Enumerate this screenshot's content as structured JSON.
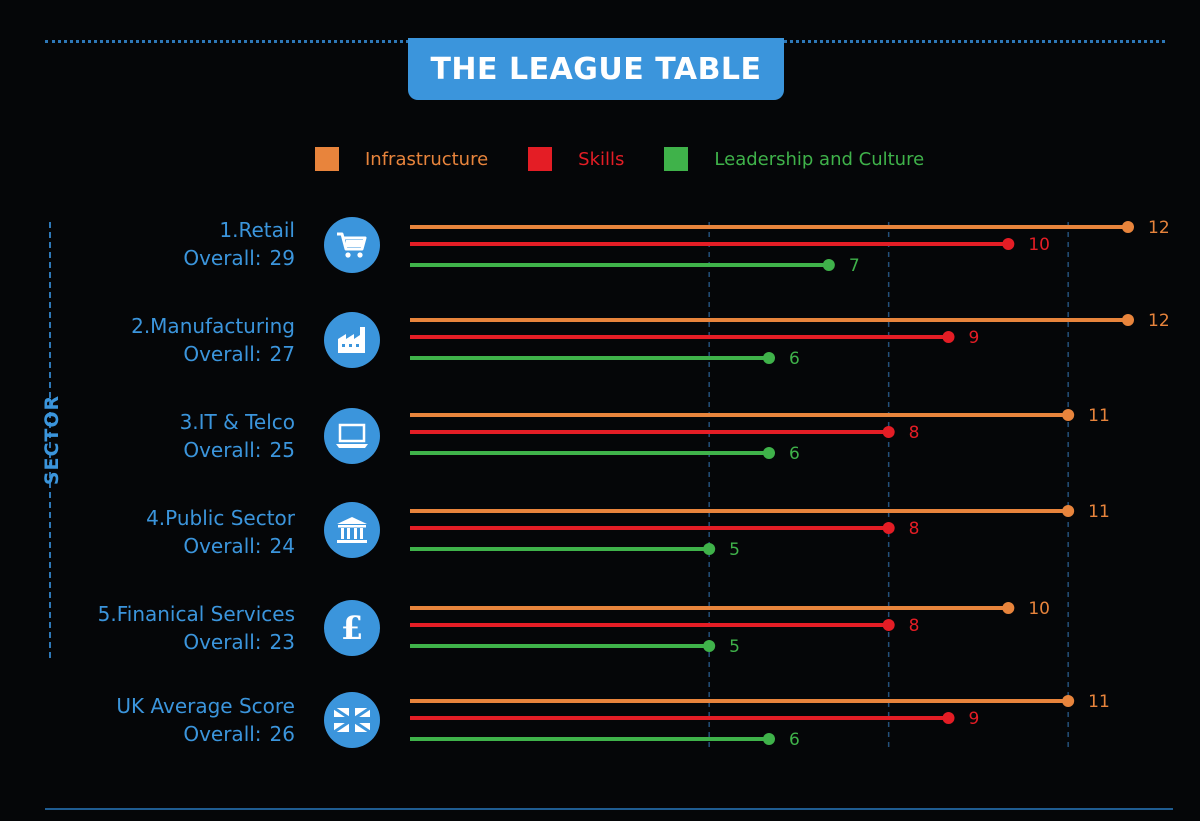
{
  "title": "THE LEAGUE TABLE",
  "axis_title": "SECTOR",
  "overall_prefix": "Overall:",
  "colors": {
    "infrastructure": "#e8843c",
    "skills": "#e41d25",
    "leadership": "#3fb24a",
    "accent": "#3b95dc"
  },
  "legend": [
    {
      "name": "Infrastructure",
      "color": "#e8843c"
    },
    {
      "name": "Skills",
      "color": "#e41d25"
    },
    {
      "name": "Leadership and Culture",
      "color": "#3fb24a"
    }
  ],
  "sectors": [
    {
      "name": "1.Retail",
      "overall": "29",
      "icon": "shopping-cart-icon"
    },
    {
      "name": "2.Manufacturing",
      "overall": "27",
      "icon": "factory-icon"
    },
    {
      "name": "3.IT & Telco",
      "overall": "25",
      "icon": "laptop-icon"
    },
    {
      "name": "4.Public Sector",
      "overall": "24",
      "icon": "government-building-icon"
    },
    {
      "name": "5.Finanical Services",
      "overall": "23",
      "icon": "pound-sign-icon"
    },
    {
      "name": "UK Average Score",
      "overall": "26",
      "icon": "union-jack-flag-icon"
    }
  ],
  "chart_data": {
    "type": "bar",
    "orientation": "horizontal",
    "categories": [
      "1.Retail",
      "2.Manufacturing",
      "3.IT & Telco",
      "4.Public Sector",
      "5.Finanical Services",
      "UK Average Score"
    ],
    "series": [
      {
        "name": "Infrastructure",
        "values": [
          12,
          12,
          11,
          11,
          10,
          11
        ]
      },
      {
        "name": "Skills",
        "values": [
          10,
          9,
          8,
          8,
          8,
          9
        ]
      },
      {
        "name": "Leadership and Culture",
        "values": [
          7,
          6,
          6,
          5,
          5,
          6
        ]
      }
    ],
    "xlim": [
      0,
      12
    ],
    "grid_values": [
      5,
      8,
      11
    ],
    "legend_position": "top"
  }
}
